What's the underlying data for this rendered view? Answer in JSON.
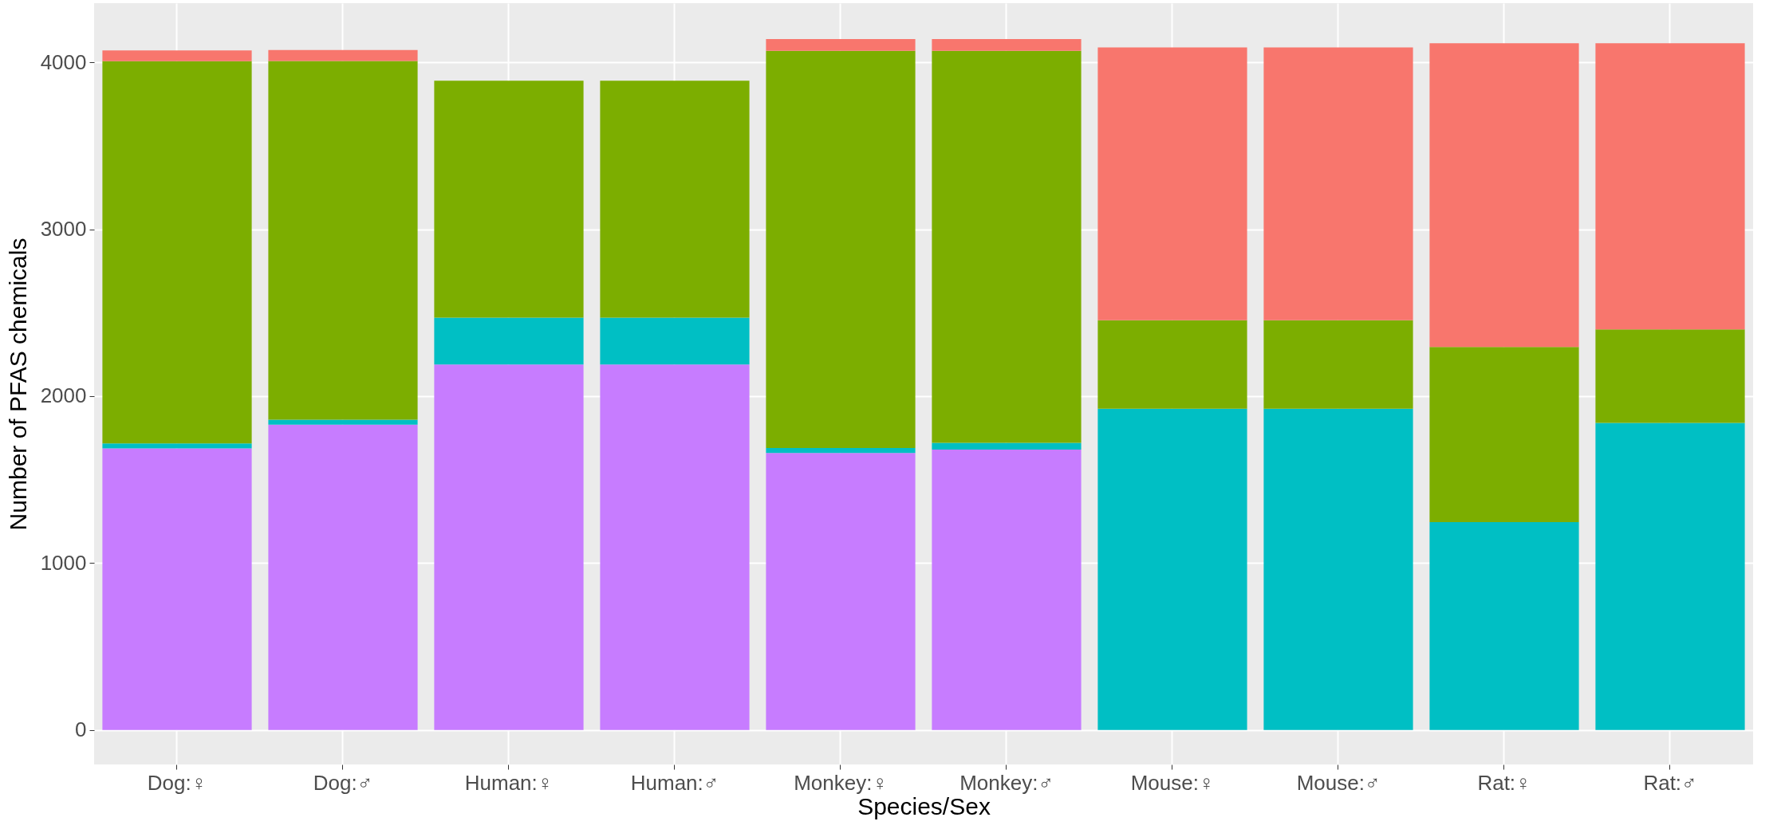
{
  "chart_data": {
    "type": "bar",
    "stacked": true,
    "xlabel": "Species/Sex",
    "ylabel": "Number of PFAS chemicals",
    "categories": [
      "Dog:♀",
      "Dog:♂",
      "Human:♀",
      "Human:♂",
      "Monkey:♀",
      "Monkey:♂",
      "Mouse:♀",
      "Mouse:♂",
      "Rat:♀",
      "Rat:♂"
    ],
    "series": [
      {
        "color": "#c77cff",
        "values": [
          1687,
          1829,
          2190,
          2190,
          1660,
          1680,
          0,
          0,
          0,
          0
        ]
      },
      {
        "color": "#00bfc4",
        "values": [
          30,
          30,
          280,
          280,
          30,
          40,
          1925,
          1925,
          1245,
          1840
        ]
      },
      {
        "color": "#7cae00",
        "values": [
          2290,
          2150,
          1420,
          1420,
          2380,
          2350,
          530,
          530,
          1050,
          560
        ]
      },
      {
        "color": "#f8766d",
        "values": [
          65,
          65,
          0,
          0,
          70,
          70,
          1635,
          1635,
          1820,
          1715
        ]
      }
    ],
    "ylim": [
      -207,
      4355
    ],
    "yticks": [
      0,
      1000,
      2000,
      3000,
      4000
    ],
    "grid": true,
    "legend": false
  }
}
